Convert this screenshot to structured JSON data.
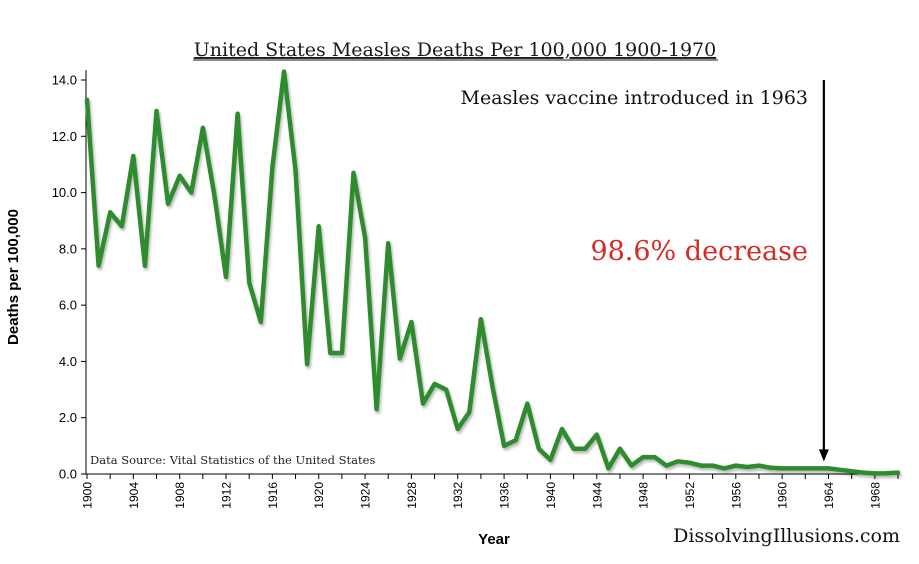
{
  "chart_data": {
    "type": "line",
    "title": "United States Measles Deaths Per 100,000 1900-1970",
    "xlabel": "Year",
    "ylabel": "Deaths per 100,000",
    "ylim": [
      0,
      14
    ],
    "xlim": [
      1900,
      1970
    ],
    "yticks": [
      "0.0",
      "2.0",
      "4.0",
      "6.0",
      "8.0",
      "10.0",
      "12.0",
      "14.0"
    ],
    "xticks": [
      "1900",
      "1904",
      "1908",
      "1912",
      "1916",
      "1920",
      "1924",
      "1928",
      "1932",
      "1936",
      "1940",
      "1944",
      "1948",
      "1952",
      "1956",
      "1960",
      "1964",
      "1968"
    ],
    "grid": false,
    "series": [
      {
        "name": "Measles deaths per 100,000",
        "color": "#2e8b2e",
        "x": [
          1900,
          1901,
          1902,
          1903,
          1904,
          1905,
          1906,
          1907,
          1908,
          1909,
          1910,
          1911,
          1912,
          1913,
          1914,
          1915,
          1916,
          1917,
          1918,
          1919,
          1920,
          1921,
          1922,
          1923,
          1924,
          1925,
          1926,
          1927,
          1928,
          1929,
          1930,
          1931,
          1932,
          1933,
          1934,
          1935,
          1936,
          1937,
          1938,
          1939,
          1940,
          1941,
          1942,
          1943,
          1944,
          1945,
          1946,
          1947,
          1948,
          1949,
          1950,
          1951,
          1952,
          1953,
          1954,
          1955,
          1956,
          1957,
          1958,
          1959,
          1960,
          1961,
          1962,
          1963,
          1964,
          1965,
          1966,
          1967,
          1968,
          1969,
          1970
        ],
        "values": [
          13.3,
          7.4,
          9.3,
          8.8,
          11.3,
          7.4,
          12.9,
          9.6,
          10.6,
          10.0,
          12.3,
          9.9,
          7.0,
          12.8,
          6.8,
          5.4,
          10.9,
          14.3,
          10.8,
          3.9,
          8.8,
          4.3,
          4.3,
          10.7,
          8.4,
          2.3,
          8.2,
          4.1,
          5.4,
          2.5,
          3.2,
          3.0,
          1.6,
          2.2,
          5.5,
          3.1,
          1.0,
          1.2,
          2.5,
          0.9,
          0.5,
          1.6,
          0.9,
          0.9,
          1.4,
          0.2,
          0.9,
          0.3,
          0.6,
          0.6,
          0.3,
          0.45,
          0.4,
          0.3,
          0.3,
          0.2,
          0.3,
          0.25,
          0.3,
          0.22,
          0.2,
          0.2,
          0.2,
          0.2,
          0.2,
          0.15,
          0.1,
          0.05,
          0.02,
          0.03,
          0.05
        ]
      }
    ],
    "annotations": {
      "vaccine_note": "Measles vaccine introduced in 1963",
      "vaccine_year": 1963.6,
      "arrow_top_value": 14.0,
      "arrow_bottom_value": 0.45,
      "decrease_text": "98.6% decrease",
      "decrease_color": "#d42b27",
      "source_text": "Data Source:  Vital Statistics of the United States"
    },
    "watermark": "DissolvingIllusions.com"
  }
}
